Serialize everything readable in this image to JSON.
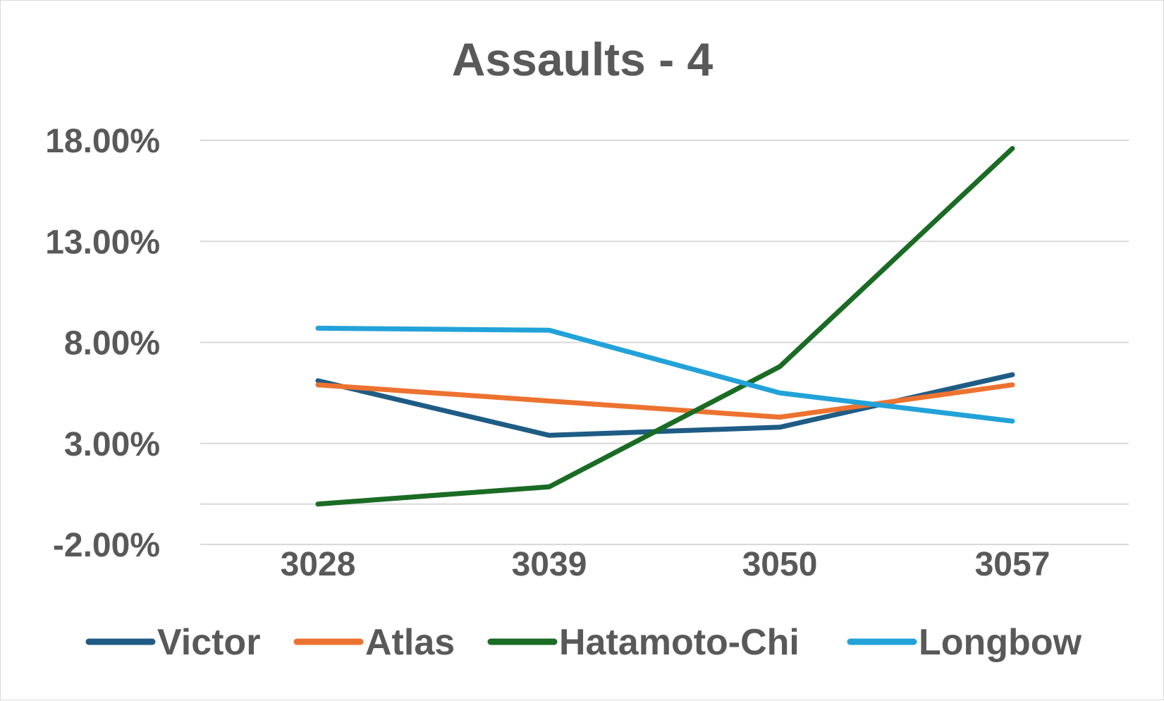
{
  "chart_data": {
    "type": "line",
    "title": "Assaults - 4",
    "categories": [
      "3028",
      "3039",
      "3050",
      "3057"
    ],
    "ylim": [
      -2,
      18
    ],
    "y_ticks": [
      -2,
      3,
      8,
      13,
      18
    ],
    "y_tick_labels": [
      "-2.00%",
      "3.00%",
      "8.00%",
      "13.00%",
      "18.00%"
    ],
    "grid": true,
    "legend_position": "bottom",
    "series": [
      {
        "name": "Victor",
        "color": "#1f5c85",
        "values": [
          6.1,
          3.4,
          3.8,
          6.4
        ]
      },
      {
        "name": "Atlas",
        "color": "#ed7230",
        "values": [
          5.9,
          5.1,
          4.3,
          5.9
        ]
      },
      {
        "name": "Hatamoto-Chi",
        "color": "#1a6b24",
        "values": [
          0.0,
          0.85,
          6.8,
          17.6
        ]
      },
      {
        "name": "Longbow",
        "color": "#22a2d9",
        "values": [
          8.7,
          8.6,
          5.5,
          4.1
        ]
      }
    ]
  }
}
